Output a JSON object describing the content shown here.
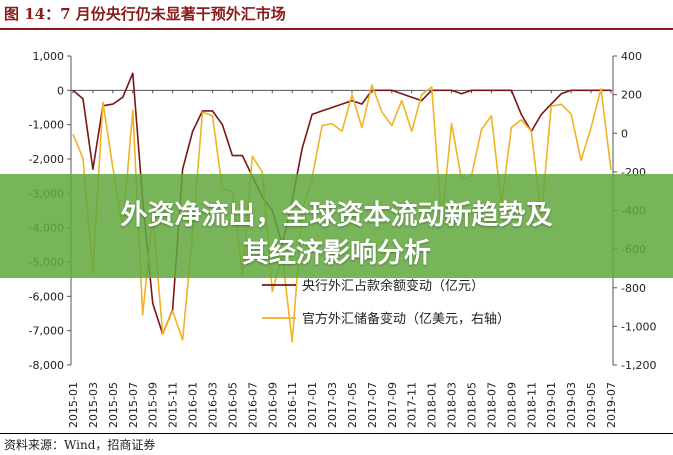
{
  "figure": {
    "title": "图 14：7 月份央行仍未显著干预外汇市场",
    "source": "资料来源：Wind，招商证券"
  },
  "banner": {
    "line1": "外资净流出，全球资本流动新趋势及",
    "line2": "其经济影响分析"
  },
  "chart_data": {
    "type": "line",
    "x": [
      "2015-01",
      "2015-02",
      "2015-03",
      "2015-04",
      "2015-05",
      "2015-06",
      "2015-07",
      "2015-08",
      "2015-09",
      "2015-10",
      "2015-11",
      "2015-12",
      "2016-01",
      "2016-02",
      "2016-03",
      "2016-04",
      "2016-05",
      "2016-06",
      "2016-07",
      "2016-08",
      "2016-09",
      "2016-10",
      "2016-11",
      "2016-12",
      "2017-01",
      "2017-02",
      "2017-03",
      "2017-04",
      "2017-05",
      "2017-06",
      "2017-07",
      "2017-08",
      "2017-09",
      "2017-10",
      "2017-11",
      "2017-12",
      "2018-01",
      "2018-02",
      "2018-03",
      "2018-04",
      "2018-05",
      "2018-06",
      "2018-07",
      "2018-08",
      "2018-09",
      "2018-10",
      "2018-11",
      "2018-12",
      "2019-01",
      "2019-02",
      "2019-03",
      "2019-04",
      "2019-05",
      "2019-06",
      "2019-07"
    ],
    "x_tick_labels": [
      "2015-01",
      "2015-03",
      "2015-05",
      "2015-07",
      "2015-09",
      "2015-11",
      "2016-01",
      "2016-03",
      "2016-05",
      "2016-07",
      "2016-09",
      "2016-11",
      "2017-01",
      "2017-03",
      "2017-05",
      "2017-07",
      "2017-09",
      "2017-11",
      "2018-01",
      "2018-03",
      "2018-05",
      "2018-07",
      "2018-09",
      "2018-11",
      "2019-01",
      "2019-03",
      "2019-05",
      "2019-07"
    ],
    "y_left": {
      "ylim": [
        -8000,
        1000
      ],
      "ticks": [
        1000,
        0,
        -1000,
        -2000,
        -3000,
        -4000,
        -5000,
        -6000,
        -7000,
        -8000
      ],
      "tick_labels": [
        "1,000",
        "0",
        "-1,000",
        "-2,000",
        "-3,000",
        "-4,000",
        "-5,000",
        "-6,000",
        "-7,000",
        "-8,000"
      ]
    },
    "y_right": {
      "ylim": [
        -1200,
        400
      ],
      "ticks": [
        400,
        200,
        0,
        -200,
        -400,
        -600,
        -800,
        -1000,
        -1200
      ],
      "tick_labels": [
        "400",
        "200",
        "0",
        "-200",
        "-400",
        "-600",
        "-800",
        "-1,000",
        "-1,200"
      ]
    },
    "series": [
      {
        "name": "央行外汇占款余额变动（亿元）",
        "axis": "left",
        "color": "#7b1416",
        "values": [
          0,
          -250,
          -2300,
          -450,
          -400,
          -200,
          500,
          -3200,
          -6200,
          -7100,
          -6400,
          -2300,
          -1200,
          -600,
          -600,
          -1000,
          -1900,
          -1900,
          -2500,
          -3100,
          -3500,
          -4500,
          -3200,
          -1700,
          -700,
          -600,
          -500,
          -400,
          -300,
          -400,
          0,
          0,
          0,
          -100,
          -200,
          -300,
          0,
          0,
          0,
          -100,
          0,
          0,
          0,
          0,
          0,
          -700,
          -1200,
          -700,
          -400,
          -100,
          0,
          0,
          0,
          0,
          0
        ]
      },
      {
        "name": "官方外汇储备变动（亿美元，右轴）",
        "axis": "right",
        "color": "#f0b323",
        "values": [
          -5,
          -130,
          -720,
          160,
          -180,
          -490,
          120,
          -940,
          -420,
          -1040,
          -920,
          -1070,
          -520,
          110,
          90,
          -290,
          -300,
          -740,
          -120,
          -200,
          -820,
          -630,
          -1080,
          -400,
          -230,
          40,
          50,
          10,
          200,
          30,
          250,
          110,
          40,
          170,
          10,
          200,
          240,
          -460,
          50,
          -240,
          -220,
          20,
          90,
          -370,
          30,
          70,
          10,
          -430,
          140,
          150,
          100,
          -140,
          30,
          230,
          -190
        ]
      }
    ],
    "legend": "bottom-center",
    "grid": false
  }
}
